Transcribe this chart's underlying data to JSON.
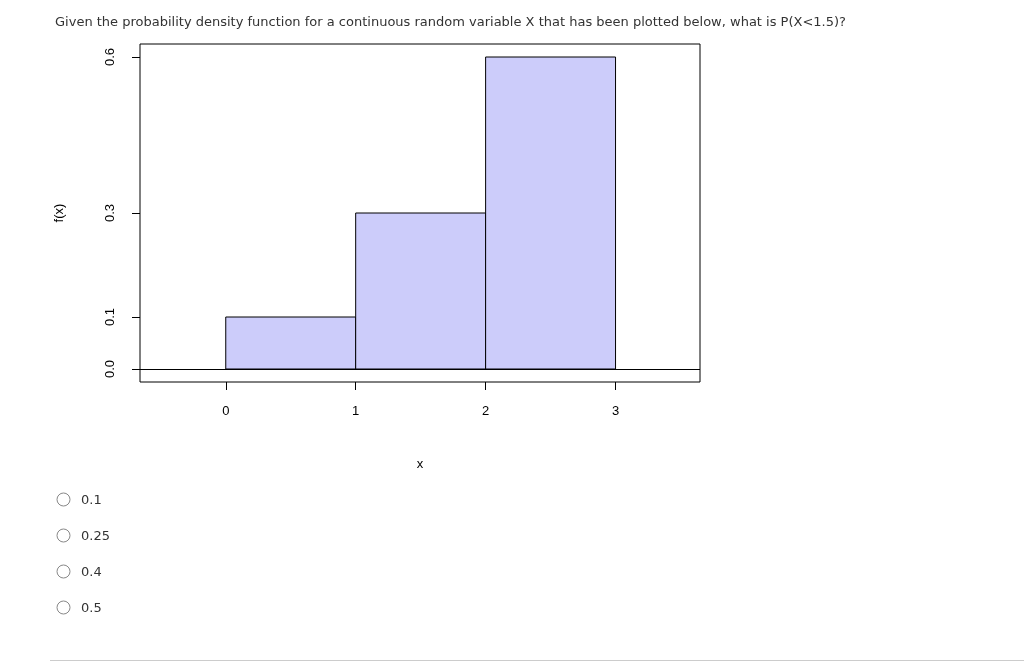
{
  "chart_data": {
    "type": "histogram",
    "title": "Given the probability density function for a continuous random variable X that has been plotted below, what is P(X<1.5)?",
    "xlabel": "x",
    "ylabel": "f(x)",
    "bins": [
      0,
      1,
      2,
      3
    ],
    "values": [
      0.1,
      0.3,
      0.6
    ],
    "color": "#ccccfa",
    "xlim": [
      -0.66,
      3.65
    ],
    "xticks": [
      0,
      1,
      2,
      3
    ],
    "ylim": [
      -0.025,
      0.625
    ],
    "yticks": [
      {
        "value": 0,
        "label": "0.0"
      },
      {
        "value": 0.1,
        "label": "0.1"
      },
      {
        "value": 0.3,
        "label": "0.3"
      },
      {
        "value": 0.6,
        "label": "0.6"
      }
    ],
    "ref_lines": [
      {
        "axis": "y",
        "value": 0,
        "color": "#000000"
      }
    ],
    "grid": false,
    "annotations": [
      "0.1",
      "0.25",
      "0.4",
      "0.5"
    ]
  }
}
